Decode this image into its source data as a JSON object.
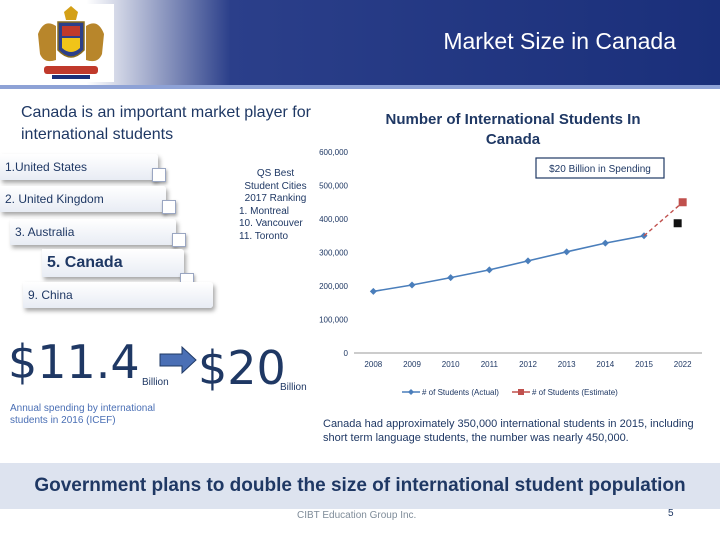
{
  "slide": {
    "title": "Market Size in Canada",
    "intro": "Canada is an important market player for international students",
    "bottom_statement": "Government plans to double the size of international student population",
    "footer": "CIBT Education Group Inc.",
    "page_number": "5"
  },
  "rankings": [
    {
      "label": "1.United States"
    },
    {
      "label": "2. United Kingdom"
    },
    {
      "label": "3. Australia"
    },
    {
      "label": "5. Canada"
    },
    {
      "label": "9. China"
    }
  ],
  "qs_ranking": {
    "lines": [
      "QS Best",
      "Student Cities",
      "2017 Ranking",
      "1. Montreal",
      "10. Vancouver",
      "11. Toronto"
    ]
  },
  "spending": {
    "from_amount": "$11.4",
    "from_unit": "Billion",
    "to_amount": "$20",
    "to_unit": "Billion",
    "caption": "Annual spending by international students in 2016 (ICEF)"
  },
  "chart_data": {
    "type": "line",
    "title": "Number of International Students In Canada",
    "categories": [
      "2008",
      "2009",
      "2010",
      "2011",
      "2012",
      "2013",
      "2014",
      "2015",
      "2022"
    ],
    "ylim": [
      0,
      600000
    ],
    "yticks": [
      "0",
      "100,000",
      "200,000",
      "300,000",
      "400,000",
      "500,000",
      "600,000"
    ],
    "series": [
      {
        "name": "# of Students (Actual)",
        "color": "#4a7ebb",
        "values": [
          184000,
          203000,
          225000,
          248000,
          275000,
          302000,
          328000,
          350000,
          null
        ]
      },
      {
        "name": "# of Students (Estimate)",
        "color": "#c0504d",
        "values": [
          null,
          null,
          null,
          null,
          null,
          null,
          null,
          350000,
          450000
        ]
      }
    ],
    "annotation": "$20 Billion in Spending",
    "legend": "bottom"
  },
  "chart_caption": "Canada had approximately 350,000 international students in 2015, including short term language students, the number was nearly 450,000.",
  "colors": {
    "navy": "#1f3864",
    "header": "#1a2f7a",
    "actual": "#4a7ebb",
    "estimate": "#c0504d"
  },
  "icons": {
    "crest": "coat-of-arms-logo",
    "arrow": "right-arrow-icon"
  }
}
